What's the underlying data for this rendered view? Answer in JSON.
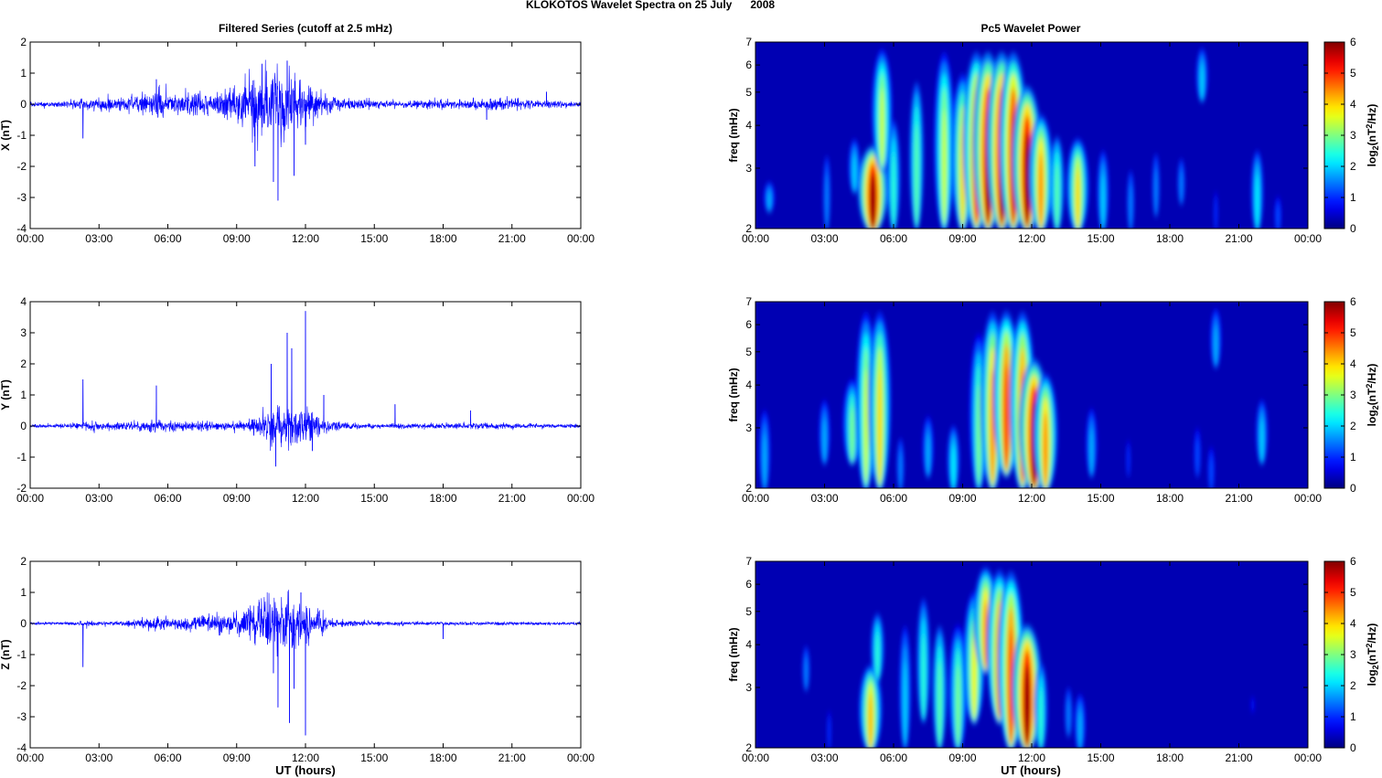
{
  "title": "KLOKOTOS Wavelet Spectra on 25 July      2008",
  "left_column_title": "Filtered Series (cutoff at 2.5 mHz)",
  "right_column_title": "Pc5 Wavelet Power",
  "xlabel": "UT (hours)",
  "time_ticks": [
    "00:00",
    "03:00",
    "06:00",
    "09:00",
    "12:00",
    "15:00",
    "18:00",
    "21:00",
    "00:00"
  ],
  "freq_ticks": [
    2,
    3,
    4,
    5,
    6,
    7
  ],
  "freq_label": "freq (mHz)",
  "colorbar_ticks": [
    0,
    1,
    2,
    3,
    4,
    5,
    6
  ],
  "colorbar_label_prefix": "log",
  "colorbar_label_sub": "2",
  "colorbar_label_mid": "(nT",
  "colorbar_label_sup": "2",
  "colorbar_label_suffix": "/Hz)",
  "colors": {
    "trace": "#0000ff",
    "background": "#ffffff"
  },
  "chart_data": [
    {
      "type": "line",
      "ylabel": "X (nT)",
      "xlim_hours": [
        0,
        24
      ],
      "ylim": [
        -4,
        2
      ],
      "yticks": [
        -4,
        -3,
        -2,
        -1,
        0,
        1,
        2
      ],
      "envelope": {
        "hours": [
          0,
          1,
          2,
          2.3,
          3,
          4,
          5,
          5.5,
          6,
          7,
          8,
          9,
          9.5,
          10,
          10.5,
          11,
          11.5,
          12,
          12.5,
          13,
          14,
          15,
          16,
          17,
          18,
          19,
          20,
          21,
          22,
          23,
          24
        ],
        "amplitude": [
          0.08,
          0.1,
          0.15,
          0.2,
          0.25,
          0.25,
          0.4,
          0.5,
          0.35,
          0.4,
          0.45,
          0.6,
          0.9,
          1.2,
          1.3,
          1.3,
          1.0,
          0.9,
          0.6,
          0.3,
          0.2,
          0.15,
          0.1,
          0.15,
          0.15,
          0.15,
          0.25,
          0.2,
          0.15,
          0.12,
          0.1
        ]
      },
      "spikes": [
        [
          2.3,
          -1.1
        ],
        [
          5.5,
          0.8
        ],
        [
          9.8,
          -2.0
        ],
        [
          10.1,
          1.3
        ],
        [
          10.6,
          -2.5
        ],
        [
          10.8,
          -3.1
        ],
        [
          11.2,
          1.4
        ],
        [
          11.5,
          -2.3
        ],
        [
          12.0,
          -1.3
        ],
        [
          19.9,
          -0.5
        ],
        [
          22.5,
          0.4
        ]
      ]
    },
    {
      "type": "line",
      "ylabel": "Y (nT)",
      "xlim_hours": [
        0,
        24
      ],
      "ylim": [
        -2,
        4
      ],
      "yticks": [
        -2,
        -1,
        0,
        1,
        2,
        3,
        4
      ],
      "envelope": {
        "hours": [
          0,
          1,
          2,
          2.3,
          3,
          4,
          5,
          5.5,
          6,
          7,
          8,
          9,
          9.5,
          10,
          10.5,
          11,
          11.5,
          12,
          12.5,
          13,
          14,
          15,
          16,
          17,
          18,
          19,
          20,
          21,
          22,
          23,
          24
        ],
        "amplitude": [
          0.06,
          0.07,
          0.1,
          0.15,
          0.15,
          0.15,
          0.2,
          0.25,
          0.18,
          0.15,
          0.15,
          0.15,
          0.2,
          0.35,
          0.6,
          0.8,
          0.7,
          0.6,
          0.5,
          0.2,
          0.1,
          0.08,
          0.08,
          0.1,
          0.1,
          0.1,
          0.12,
          0.1,
          0.08,
          0.07,
          0.06
        ]
      },
      "spikes": [
        [
          2.3,
          1.5
        ],
        [
          5.5,
          1.3
        ],
        [
          10.5,
          2.0
        ],
        [
          10.7,
          -1.3
        ],
        [
          11.2,
          3.0
        ],
        [
          11.4,
          2.5
        ],
        [
          12.0,
          3.7
        ],
        [
          12.3,
          -0.8
        ],
        [
          12.8,
          1.0
        ],
        [
          15.9,
          0.7
        ],
        [
          19.2,
          0.5
        ]
      ]
    },
    {
      "type": "line",
      "ylabel": "Z (nT)",
      "xlim_hours": [
        0,
        24
      ],
      "ylim": [
        -4,
        2
      ],
      "yticks": [
        -4,
        -3,
        -2,
        -1,
        0,
        1,
        2
      ],
      "envelope": {
        "hours": [
          0,
          1,
          2,
          2.3,
          3,
          4,
          5,
          5.5,
          6,
          7,
          8,
          9,
          9.5,
          10,
          10.5,
          11,
          11.5,
          12,
          12.5,
          13,
          14,
          15,
          16,
          17,
          18,
          19,
          20,
          21,
          22,
          23,
          24
        ],
        "amplitude": [
          0.05,
          0.05,
          0.06,
          0.1,
          0.06,
          0.08,
          0.2,
          0.25,
          0.2,
          0.25,
          0.3,
          0.4,
          0.6,
          0.8,
          0.9,
          0.9,
          0.8,
          0.7,
          0.5,
          0.2,
          0.1,
          0.08,
          0.07,
          0.06,
          0.06,
          0.06,
          0.06,
          0.06,
          0.05,
          0.05,
          0.05
        ]
      },
      "spikes": [
        [
          2.3,
          -1.4
        ],
        [
          10.6,
          -1.6
        ],
        [
          10.8,
          -2.7
        ],
        [
          11.3,
          -3.2
        ],
        [
          11.5,
          -2.1
        ],
        [
          12.0,
          -3.6
        ],
        [
          11.8,
          1.0
        ],
        [
          18.0,
          -0.5
        ]
      ]
    },
    {
      "type": "heatmap",
      "ylabel": "freq (mHz)",
      "xlim_hours": [
        0,
        24
      ],
      "ylim_mHz": [
        2,
        7
      ],
      "yscale": "log",
      "clim": [
        0,
        6
      ],
      "colormap": "jet",
      "blobs": [
        {
          "hour": 0.6,
          "fmin": 2.3,
          "fmax": 2.8,
          "peak": 1.8
        },
        {
          "hour": 3.1,
          "fmin": 2.0,
          "fmax": 3.6,
          "peak": 1.5
        },
        {
          "hour": 4.3,
          "fmin": 2.6,
          "fmax": 3.8,
          "peak": 2.0
        },
        {
          "hour": 5.1,
          "fmin": 2.0,
          "fmax": 3.6,
          "peak": 6.0
        },
        {
          "hour": 5.5,
          "fmin": 3.0,
          "fmax": 7.0,
          "peak": 3.5
        },
        {
          "hour": 6.0,
          "fmin": 2.0,
          "fmax": 4.5,
          "peak": 2.5
        },
        {
          "hour": 7.0,
          "fmin": 2.0,
          "fmax": 6.0,
          "peak": 2.8
        },
        {
          "hour": 8.2,
          "fmin": 2.0,
          "fmax": 7.0,
          "peak": 3.5
        },
        {
          "hour": 9.0,
          "fmin": 2.0,
          "fmax": 6.0,
          "peak": 4.0
        },
        {
          "hour": 9.6,
          "fmin": 2.0,
          "fmax": 7.0,
          "peak": 5.2
        },
        {
          "hour": 10.1,
          "fmin": 2.0,
          "fmax": 7.0,
          "peak": 6.0
        },
        {
          "hour": 10.7,
          "fmin": 2.0,
          "fmax": 7.0,
          "peak": 6.0
        },
        {
          "hour": 11.2,
          "fmin": 2.0,
          "fmax": 7.0,
          "peak": 5.5
        },
        {
          "hour": 11.8,
          "fmin": 2.0,
          "fmax": 5.5,
          "peak": 6.0
        },
        {
          "hour": 12.4,
          "fmin": 2.0,
          "fmax": 4.5,
          "peak": 4.5
        },
        {
          "hour": 13.1,
          "fmin": 2.0,
          "fmax": 4.0,
          "peak": 2.8
        },
        {
          "hour": 14.0,
          "fmin": 2.0,
          "fmax": 3.8,
          "peak": 4.0
        },
        {
          "hour": 15.1,
          "fmin": 2.0,
          "fmax": 3.6,
          "peak": 2.0
        },
        {
          "hour": 16.3,
          "fmin": 2.0,
          "fmax": 3.2,
          "peak": 1.5
        },
        {
          "hour": 17.4,
          "fmin": 2.2,
          "fmax": 3.6,
          "peak": 1.5
        },
        {
          "hour": 18.5,
          "fmin": 2.4,
          "fmax": 3.4,
          "peak": 1.5
        },
        {
          "hour": 19.4,
          "fmin": 4.8,
          "fmax": 7.0,
          "peak": 2.0
        },
        {
          "hour": 20.0,
          "fmin": 2.0,
          "fmax": 2.8,
          "peak": 1.0
        },
        {
          "hour": 21.8,
          "fmin": 2.0,
          "fmax": 3.6,
          "peak": 2.2
        },
        {
          "hour": 22.7,
          "fmin": 2.0,
          "fmax": 2.6,
          "peak": 1.2
        }
      ]
    },
    {
      "type": "heatmap",
      "ylabel": "freq (mHz)",
      "xlim_hours": [
        0,
        24
      ],
      "ylim_mHz": [
        2,
        7
      ],
      "yscale": "log",
      "clim": [
        0,
        6
      ],
      "colormap": "jet",
      "blobs": [
        {
          "hour": 0.4,
          "fmin": 2.0,
          "fmax": 3.6,
          "peak": 1.8
        },
        {
          "hour": 3.0,
          "fmin": 2.4,
          "fmax": 3.8,
          "peak": 1.8
        },
        {
          "hour": 4.2,
          "fmin": 2.4,
          "fmax": 4.3,
          "peak": 3.0
        },
        {
          "hour": 4.8,
          "fmin": 2.0,
          "fmax": 7.0,
          "peak": 3.5
        },
        {
          "hour": 5.4,
          "fmin": 2.0,
          "fmax": 7.0,
          "peak": 4.0
        },
        {
          "hour": 6.3,
          "fmin": 2.0,
          "fmax": 3.0,
          "peak": 1.5
        },
        {
          "hour": 7.5,
          "fmin": 2.2,
          "fmax": 3.4,
          "peak": 1.8
        },
        {
          "hour": 8.6,
          "fmin": 2.0,
          "fmax": 3.2,
          "peak": 2.2
        },
        {
          "hour": 9.7,
          "fmin": 2.0,
          "fmax": 6.0,
          "peak": 3.0
        },
        {
          "hour": 10.3,
          "fmin": 2.0,
          "fmax": 7.0,
          "peak": 4.5
        },
        {
          "hour": 10.9,
          "fmin": 2.2,
          "fmax": 7.0,
          "peak": 5.0
        },
        {
          "hour": 11.6,
          "fmin": 2.0,
          "fmax": 7.0,
          "peak": 4.8
        },
        {
          "hour": 12.1,
          "fmin": 2.0,
          "fmax": 5.0,
          "peak": 6.0
        },
        {
          "hour": 12.6,
          "fmin": 2.0,
          "fmax": 4.5,
          "peak": 4.5
        },
        {
          "hour": 14.6,
          "fmin": 2.2,
          "fmax": 3.6,
          "peak": 1.8
        },
        {
          "hour": 16.2,
          "fmin": 2.2,
          "fmax": 3.0,
          "peak": 1.0
        },
        {
          "hour": 19.2,
          "fmin": 2.2,
          "fmax": 3.2,
          "peak": 1.2
        },
        {
          "hour": 19.8,
          "fmin": 2.0,
          "fmax": 2.8,
          "peak": 1.2
        },
        {
          "hour": 20.0,
          "fmin": 4.6,
          "fmax": 7.0,
          "peak": 1.8
        },
        {
          "hour": 22.0,
          "fmin": 2.4,
          "fmax": 3.8,
          "peak": 2.0
        }
      ]
    },
    {
      "type": "heatmap",
      "ylabel": "freq (mHz)",
      "xlim_hours": [
        0,
        24
      ],
      "ylim_mHz": [
        2,
        7
      ],
      "yscale": "log",
      "clim": [
        0,
        6
      ],
      "colormap": "jet",
      "blobs": [
        {
          "hour": 2.2,
          "fmin": 3.0,
          "fmax": 4.2,
          "peak": 1.5
        },
        {
          "hour": 3.2,
          "fmin": 2.0,
          "fmax": 2.8,
          "peak": 1.0
        },
        {
          "hour": 5.0,
          "fmin": 2.0,
          "fmax": 3.6,
          "peak": 4.2
        },
        {
          "hour": 5.3,
          "fmin": 3.2,
          "fmax": 5.2,
          "peak": 2.5
        },
        {
          "hour": 6.5,
          "fmin": 2.0,
          "fmax": 5.0,
          "peak": 2.0
        },
        {
          "hour": 7.3,
          "fmin": 2.4,
          "fmax": 6.0,
          "peak": 2.5
        },
        {
          "hour": 8.0,
          "fmin": 2.0,
          "fmax": 5.0,
          "peak": 2.8
        },
        {
          "hour": 8.8,
          "fmin": 2.0,
          "fmax": 4.8,
          "peak": 3.0
        },
        {
          "hour": 9.5,
          "fmin": 2.4,
          "fmax": 6.0,
          "peak": 3.8
        },
        {
          "hour": 10.0,
          "fmin": 3.4,
          "fmax": 7.0,
          "peak": 4.5
        },
        {
          "hour": 10.6,
          "fmin": 2.4,
          "fmax": 7.0,
          "peak": 4.8
        },
        {
          "hour": 11.1,
          "fmin": 2.0,
          "fmax": 7.0,
          "peak": 5.0
        },
        {
          "hour": 11.8,
          "fmin": 2.0,
          "fmax": 4.8,
          "peak": 6.0
        },
        {
          "hour": 12.4,
          "fmin": 2.0,
          "fmax": 3.8,
          "peak": 2.5
        },
        {
          "hour": 13.6,
          "fmin": 2.2,
          "fmax": 3.2,
          "peak": 1.5
        },
        {
          "hour": 14.1,
          "fmin": 2.0,
          "fmax": 3.0,
          "peak": 1.8
        },
        {
          "hour": 21.6,
          "fmin": 2.6,
          "fmax": 3.0,
          "peak": 0.8
        }
      ]
    }
  ]
}
